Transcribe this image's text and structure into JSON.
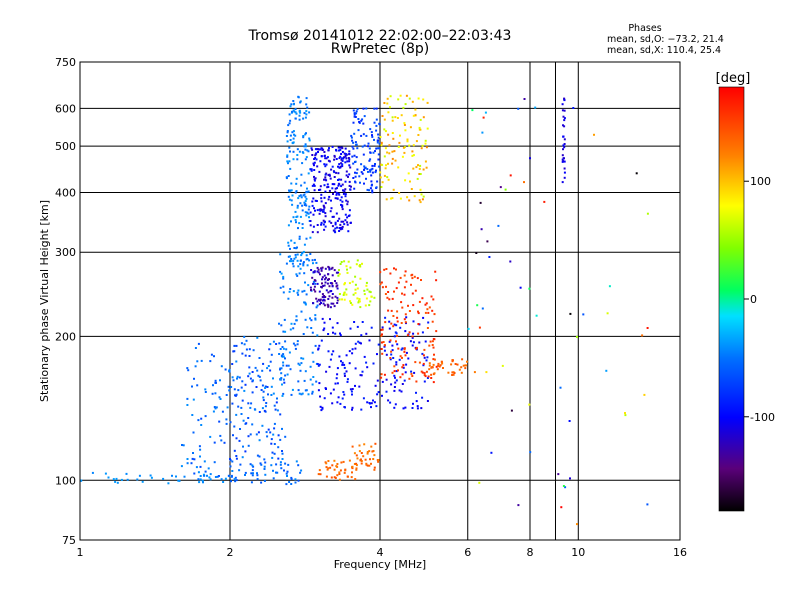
{
  "title_line1": "Tromsø 20141012 22:02:00–22:03:43",
  "title_line2": "RwPretec (8p)",
  "stats": {
    "heading": "Phases",
    "line1": "mean, sd,O: −73.2, 21.4",
    "line2": "mean, sd,X: 110.4, 25.4"
  },
  "colorbar": {
    "unit_label": "[deg]",
    "ticks": [
      {
        "value": 100,
        "label": "100"
      },
      {
        "value": 0,
        "label": "0"
      },
      {
        "value": -100,
        "label": "-100"
      }
    ],
    "range": [
      -180,
      180
    ],
    "colormap": "rainbow (black-purple-blue-cyan-green-yellow-red)"
  },
  "chart_data": {
    "type": "scatter",
    "title": "Tromsø 20141012 22:02:00–22:03:43",
    "subtitle": "RwPretec (8p)",
    "xlabel": "Frequency [MHz]",
    "ylabel": "Stationary phase Virtual Height [km]",
    "x_scale": "log",
    "y_scale": "log",
    "xlim": [
      1,
      16
    ],
    "ylim": [
      75,
      750
    ],
    "x_ticks": [
      1,
      2,
      4,
      6,
      8,
      10,
      16
    ],
    "x_minor_ticks": [
      9
    ],
    "y_ticks": [
      75,
      100,
      200,
      300,
      400,
      500,
      600,
      750
    ],
    "grid": true,
    "color_variable": "Phase [deg]",
    "clusters": [
      {
        "freq": [
          1.0,
          2.0
        ],
        "height": [
          98,
          104
        ],
        "phase": [
          -45,
          -35
        ],
        "points": 40
      },
      {
        "freq": [
          1.6,
          2.0
        ],
        "height": [
          100,
          195
        ],
        "phase": [
          -70,
          -40
        ],
        "points": 80
      },
      {
        "freq": [
          2.0,
          2.8
        ],
        "height": [
          98,
          110
        ],
        "phase": [
          -65,
          -40
        ],
        "points": 60
      },
      {
        "freq": [
          2.0,
          2.6
        ],
        "height": [
          110,
          200
        ],
        "phase": [
          -80,
          -40
        ],
        "points": 160
      },
      {
        "freq": [
          2.6,
          2.9
        ],
        "height": [
          280,
          640
        ],
        "phase": [
          -55,
          -35
        ],
        "points": 180
      },
      {
        "freq": [
          2.5,
          3.0
        ],
        "height": [
          150,
          300
        ],
        "phase": [
          -60,
          -35
        ],
        "points": 130
      },
      {
        "freq": [
          2.9,
          3.5
        ],
        "height": [
          330,
          500
        ],
        "phase": [
          -120,
          -90
        ],
        "points": 260
      },
      {
        "freq": [
          2.9,
          3.3
        ],
        "height": [
          230,
          280
        ],
        "phase": [
          -140,
          -110
        ],
        "points": 100
      },
      {
        "freq": [
          3.3,
          3.9
        ],
        "height": [
          230,
          290
        ],
        "phase": [
          50,
          80
        ],
        "points": 60
      },
      {
        "freq": [
          3.5,
          4.0
        ],
        "height": [
          400,
          600
        ],
        "phase": [
          -90,
          -60
        ],
        "points": 120
      },
      {
        "freq": [
          3.0,
          3.6
        ],
        "height": [
          100,
          110
        ],
        "phase": [
          120,
          145
        ],
        "points": 40
      },
      {
        "freq": [
          3.5,
          4.0
        ],
        "height": [
          105,
          120
        ],
        "phase": [
          120,
          145
        ],
        "points": 40
      },
      {
        "freq": [
          3.0,
          5.0
        ],
        "height": [
          140,
          220
        ],
        "phase": [
          -110,
          -85
        ],
        "points": 200
      },
      {
        "freq": [
          4.0,
          5.2
        ],
        "height": [
          160,
          280
        ],
        "phase": [
          140,
          170
        ],
        "points": 140
      },
      {
        "freq": [
          4.0,
          5.0
        ],
        "height": [
          380,
          650
        ],
        "phase": [
          60,
          120
        ],
        "points": 120
      },
      {
        "freq": [
          5.0,
          6.0
        ],
        "height": [
          165,
          180
        ],
        "phase": [
          125,
          145
        ],
        "points": 40
      },
      {
        "freq": [
          9.3,
          9.4
        ],
        "height": [
          420,
          630
        ],
        "phase": [
          -120,
          -100
        ],
        "points": 30
      },
      {
        "freq": [
          6.0,
          14.0
        ],
        "height": [
          80,
          650
        ],
        "phase": [
          -180,
          180
        ],
        "points": 60
      }
    ]
  }
}
